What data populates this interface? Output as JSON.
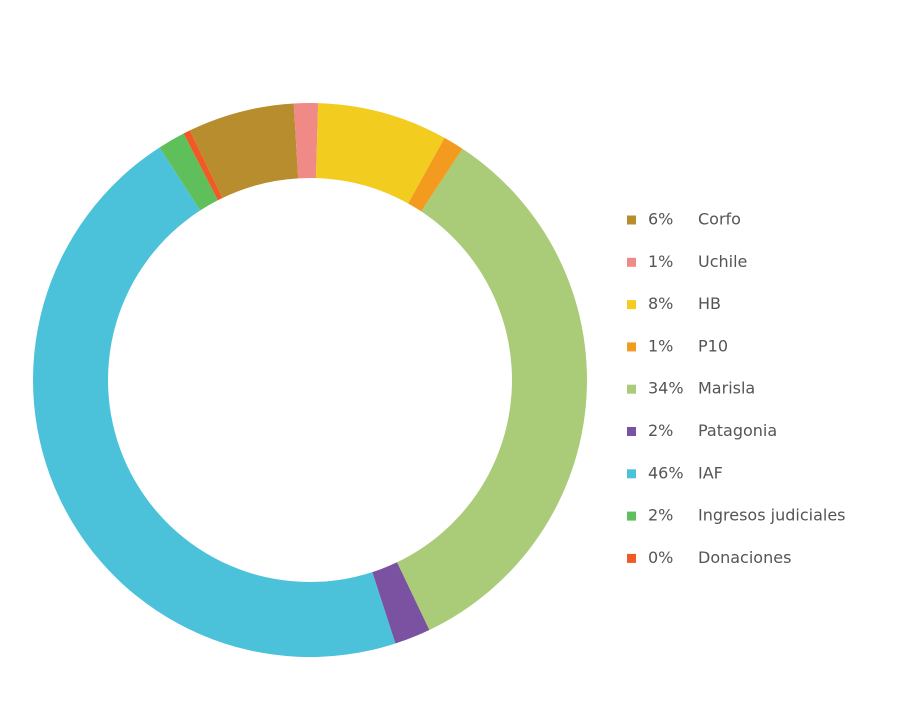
{
  "chart_data": {
    "type": "donut",
    "categories": [
      "Corfo",
      "Uchile",
      "HB",
      "P10",
      "Marisla",
      "Patagonia",
      "IAF",
      "Ingresos judiciales",
      "Donaciones"
    ],
    "values": [
      6.2,
      1.4,
      7.6,
      1.2,
      33.6,
      2.1,
      45.8,
      1.6,
      0.4
    ],
    "value_labels": [
      "6%",
      "1%",
      "8%",
      "1%",
      "34%",
      "2%",
      "46%",
      "2%",
      "0%"
    ],
    "colors": [
      "#b78d2e",
      "#ef8a86",
      "#f2cc1f",
      "#f39b1e",
      "#aacb78",
      "#7b52a1",
      "#4bc2d9",
      "#5fbf5a",
      "#f05a24"
    ]
  }
}
